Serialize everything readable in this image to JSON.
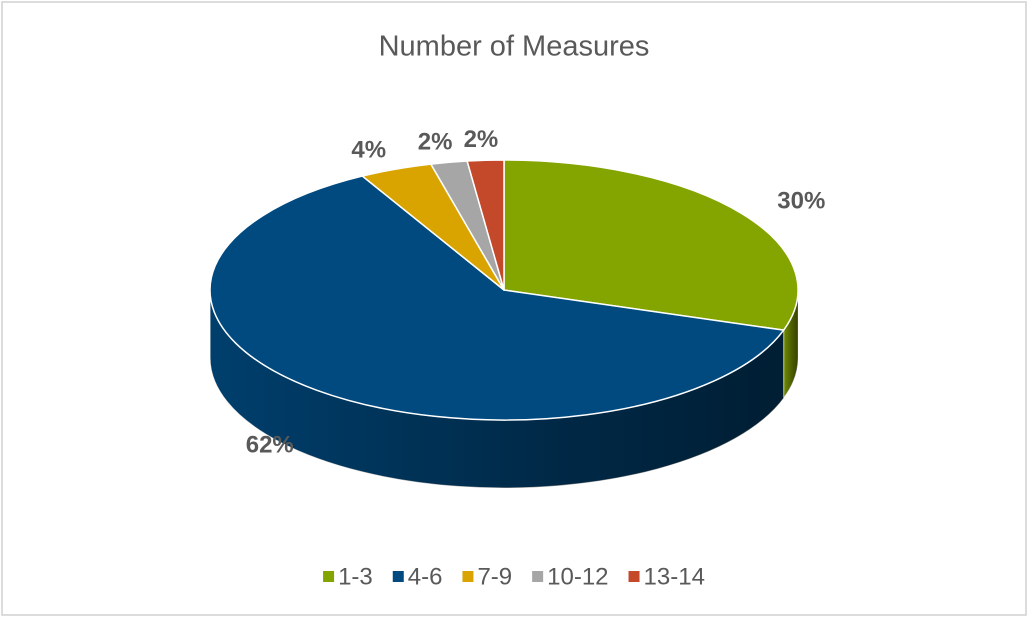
{
  "chart_data": {
    "type": "pie3d",
    "title": "Number of Measures",
    "categories": [
      "1-3",
      "4-6",
      "7-9",
      "10-12",
      "13-14"
    ],
    "values": [
      30,
      62,
      4,
      2,
      2
    ],
    "value_labels": [
      "30%",
      "62%",
      "4%",
      "2%",
      "2%"
    ],
    "colors": [
      "#84a400",
      "#004a80",
      "#d9a400",
      "#a6a6a6",
      "#c4482a"
    ],
    "legend": "bottom"
  }
}
